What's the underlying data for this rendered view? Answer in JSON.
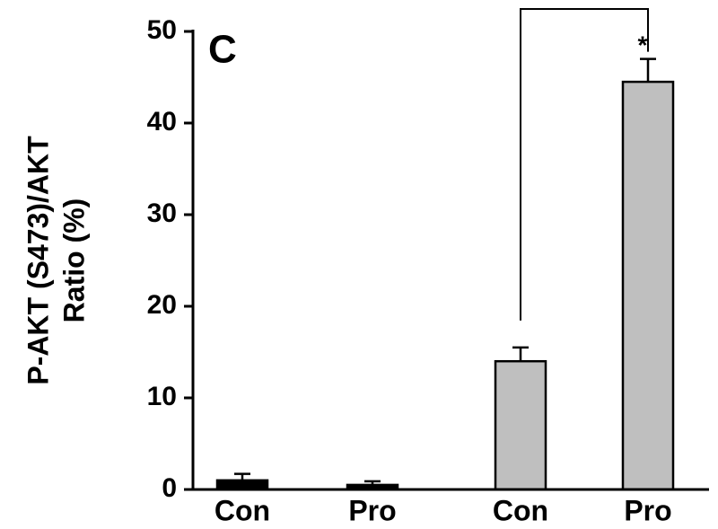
{
  "chart_data": {
    "type": "bar",
    "panel_label": "C",
    "ylabel": [
      "P-AKT (S473)/AKT",
      "Ratio (%)"
    ],
    "categories": [
      "Con",
      "Pro",
      "Con",
      "Pro"
    ],
    "values": [
      1.0,
      0.5,
      14,
      44.5
    ],
    "errors": [
      0.7,
      0.4,
      1.5,
      2.5
    ],
    "colors": [
      "#000000",
      "#000000",
      "#bfbfbf",
      "#bfbfbf"
    ],
    "ylim": [
      0,
      50
    ],
    "yticks": [
      0,
      10,
      20,
      30,
      40,
      50
    ],
    "significance": {
      "from": 2,
      "to": 3,
      "label": "*"
    }
  }
}
